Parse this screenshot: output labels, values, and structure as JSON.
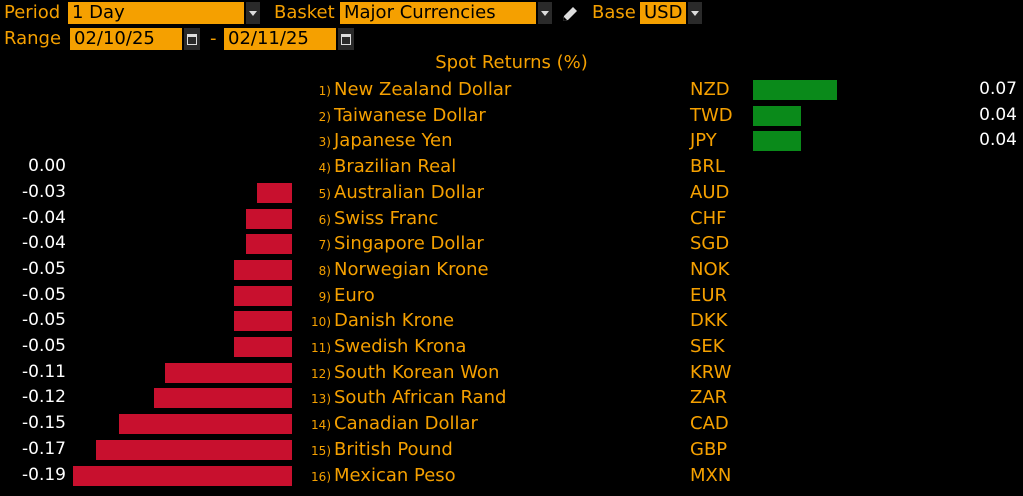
{
  "controls": {
    "period_label": "Period",
    "period_value": "1 Day",
    "basket_label": "Basket",
    "basket_value": "Major Currencies",
    "base_label": "Base",
    "base_value": "USD",
    "range_label": "Range",
    "range_start": "02/10/25",
    "range_sep": "-",
    "range_end": "02/11/25",
    "icons": [
      "chevron-down-icon",
      "pencil-icon",
      "calendar-icon"
    ]
  },
  "colors": {
    "accent": "#f5a000",
    "positive": "#0a8a1a",
    "negative": "#c8102e",
    "background": "#000000"
  },
  "chart_data": {
    "type": "bar",
    "title": "Spot Returns (%)",
    "rows": [
      {
        "rank": "1)",
        "name": "New Zealand Dollar",
        "code": "NZD",
        "value": 0.07,
        "label": "0.07"
      },
      {
        "rank": "2)",
        "name": "Taiwanese Dollar",
        "code": "TWD",
        "value": 0.04,
        "label": "0.04"
      },
      {
        "rank": "3)",
        "name": "Japanese Yen",
        "code": "JPY",
        "value": 0.04,
        "label": "0.04"
      },
      {
        "rank": "4)",
        "name": "Brazilian Real",
        "code": "BRL",
        "value": 0.0,
        "label": "0.00"
      },
      {
        "rank": "5)",
        "name": "Australian Dollar",
        "code": "AUD",
        "value": -0.03,
        "label": "-0.03"
      },
      {
        "rank": "6)",
        "name": "Swiss Franc",
        "code": "CHF",
        "value": -0.04,
        "label": "-0.04"
      },
      {
        "rank": "7)",
        "name": "Singapore Dollar",
        "code": "SGD",
        "value": -0.04,
        "label": "-0.04"
      },
      {
        "rank": "8)",
        "name": "Norwegian Krone",
        "code": "NOK",
        "value": -0.05,
        "label": "-0.05"
      },
      {
        "rank": "9)",
        "name": "Euro",
        "code": "EUR",
        "value": -0.05,
        "label": "-0.05"
      },
      {
        "rank": "10)",
        "name": "Danish Krone",
        "code": "DKK",
        "value": -0.05,
        "label": "-0.05"
      },
      {
        "rank": "11)",
        "name": "Swedish Krona",
        "code": "SEK",
        "value": -0.05,
        "label": "-0.05"
      },
      {
        "rank": "12)",
        "name": "South Korean Won",
        "code": "KRW",
        "value": -0.11,
        "label": "-0.11"
      },
      {
        "rank": "13)",
        "name": "South African Rand",
        "code": "ZAR",
        "value": -0.12,
        "label": "-0.12"
      },
      {
        "rank": "14)",
        "name": "Canadian Dollar",
        "code": "CAD",
        "value": -0.15,
        "label": "-0.15"
      },
      {
        "rank": "15)",
        "name": "British Pound",
        "code": "GBP",
        "value": -0.17,
        "label": "-0.17"
      },
      {
        "rank": "16)",
        "name": "Mexican Peso",
        "code": "MXN",
        "value": -0.19,
        "label": "-0.19"
      }
    ]
  }
}
